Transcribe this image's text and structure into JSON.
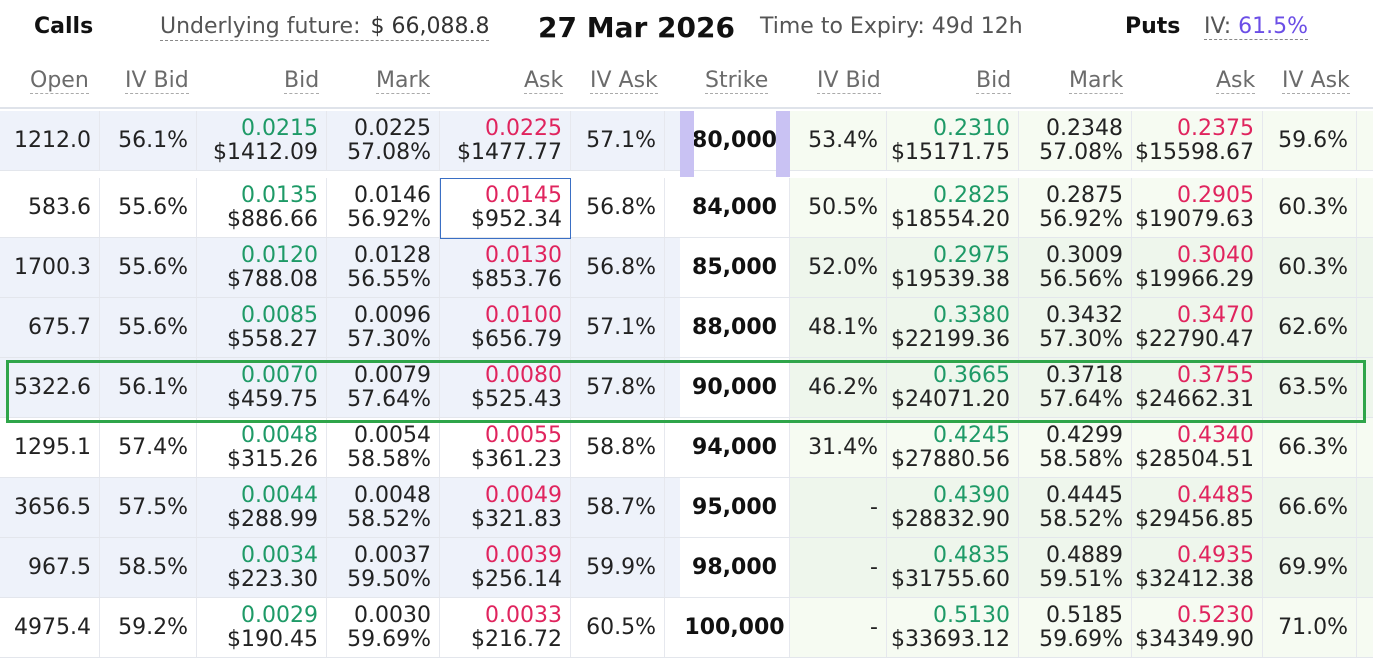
{
  "header": {
    "calls_title": "Calls",
    "underlying_label": "Underlying future:",
    "underlying_value": "$ 66,088.8",
    "expiry_date": "27 Mar 2026",
    "time_to_expiry": "Time to Expiry: 49d 12h",
    "puts_title": "Puts",
    "iv_label": "IV:",
    "iv_value": "61.5%"
  },
  "columns": {
    "calls": [
      "Open",
      "IV Bid",
      "Bid",
      "Mark",
      "Ask",
      "IV Ask"
    ],
    "strike": "Strike",
    "puts": [
      "IV Bid",
      "Bid",
      "Mark",
      "Ask",
      "IV Ask"
    ]
  },
  "colors": {
    "bid": "#1e9a67",
    "ask": "#e0245e",
    "iv_accent": "#6b4ee6",
    "atm_highlight": "#2fa54a"
  },
  "rows": [
    {
      "strike": "80,000",
      "c_open": "1212.0",
      "c_ivbid": "56.1%",
      "c_bid": "0.0215",
      "c_bid_usd": "$1412.09",
      "c_mark": "0.0225",
      "c_mark_iv": "57.08%",
      "c_ask": "0.0225",
      "c_ask_usd": "$1477.77",
      "c_ivask": "57.1%",
      "p_ivbid": "53.4%",
      "p_bid": "0.2310",
      "p_bid_usd": "$15171.75",
      "p_mark": "0.2348",
      "p_mark_iv": "57.08%",
      "p_ask": "0.2375",
      "p_ask_usd": "$15598.67",
      "p_ivask": "59.6%"
    },
    {
      "strike": "84,000",
      "c_open": "583.6",
      "c_ivbid": "55.6%",
      "c_bid": "0.0135",
      "c_bid_usd": "$886.66",
      "c_mark": "0.0146",
      "c_mark_iv": "56.92%",
      "c_ask": "0.0145",
      "c_ask_usd": "$952.34",
      "c_ivask": "56.8%",
      "p_ivbid": "50.5%",
      "p_bid": "0.2825",
      "p_bid_usd": "$18554.20",
      "p_mark": "0.2875",
      "p_mark_iv": "56.92%",
      "p_ask": "0.2905",
      "p_ask_usd": "$19079.63",
      "p_ivask": "60.3%"
    },
    {
      "strike": "85,000",
      "c_open": "1700.3",
      "c_ivbid": "55.6%",
      "c_bid": "0.0120",
      "c_bid_usd": "$788.08",
      "c_mark": "0.0128",
      "c_mark_iv": "56.55%",
      "c_ask": "0.0130",
      "c_ask_usd": "$853.76",
      "c_ivask": "56.8%",
      "p_ivbid": "52.0%",
      "p_bid": "0.2975",
      "p_bid_usd": "$19539.38",
      "p_mark": "0.3009",
      "p_mark_iv": "56.56%",
      "p_ask": "0.3040",
      "p_ask_usd": "$19966.29",
      "p_ivask": "60.3%"
    },
    {
      "strike": "88,000",
      "c_open": "675.7",
      "c_ivbid": "55.6%",
      "c_bid": "0.0085",
      "c_bid_usd": "$558.27",
      "c_mark": "0.0096",
      "c_mark_iv": "57.30%",
      "c_ask": "0.0100",
      "c_ask_usd": "$656.79",
      "c_ivask": "57.1%",
      "p_ivbid": "48.1%",
      "p_bid": "0.3380",
      "p_bid_usd": "$22199.36",
      "p_mark": "0.3432",
      "p_mark_iv": "57.30%",
      "p_ask": "0.3470",
      "p_ask_usd": "$22790.47",
      "p_ivask": "62.6%"
    },
    {
      "strike": "90,000",
      "c_open": "5322.6",
      "c_ivbid": "56.1%",
      "c_bid": "0.0070",
      "c_bid_usd": "$459.75",
      "c_mark": "0.0079",
      "c_mark_iv": "57.64%",
      "c_ask": "0.0080",
      "c_ask_usd": "$525.43",
      "c_ivask": "57.8%",
      "p_ivbid": "46.2%",
      "p_bid": "0.3665",
      "p_bid_usd": "$24071.20",
      "p_mark": "0.3718",
      "p_mark_iv": "57.64%",
      "p_ask": "0.3755",
      "p_ask_usd": "$24662.31",
      "p_ivask": "63.5%"
    },
    {
      "strike": "94,000",
      "c_open": "1295.1",
      "c_ivbid": "57.4%",
      "c_bid": "0.0048",
      "c_bid_usd": "$315.26",
      "c_mark": "0.0054",
      "c_mark_iv": "58.58%",
      "c_ask": "0.0055",
      "c_ask_usd": "$361.23",
      "c_ivask": "58.8%",
      "p_ivbid": "31.4%",
      "p_bid": "0.4245",
      "p_bid_usd": "$27880.56",
      "p_mark": "0.4299",
      "p_mark_iv": "58.58%",
      "p_ask": "0.4340",
      "p_ask_usd": "$28504.51",
      "p_ivask": "66.3%"
    },
    {
      "strike": "95,000",
      "c_open": "3656.5",
      "c_ivbid": "57.5%",
      "c_bid": "0.0044",
      "c_bid_usd": "$288.99",
      "c_mark": "0.0048",
      "c_mark_iv": "58.52%",
      "c_ask": "0.0049",
      "c_ask_usd": "$321.83",
      "c_ivask": "58.7%",
      "p_ivbid": "-",
      "p_bid": "0.4390",
      "p_bid_usd": "$28832.90",
      "p_mark": "0.4445",
      "p_mark_iv": "58.52%",
      "p_ask": "0.4485",
      "p_ask_usd": "$29456.85",
      "p_ivask": "66.6%"
    },
    {
      "strike": "98,000",
      "c_open": "967.5",
      "c_ivbid": "58.5%",
      "c_bid": "0.0034",
      "c_bid_usd": "$223.30",
      "c_mark": "0.0037",
      "c_mark_iv": "59.50%",
      "c_ask": "0.0039",
      "c_ask_usd": "$256.14",
      "c_ivask": "59.9%",
      "p_ivbid": "-",
      "p_bid": "0.4835",
      "p_bid_usd": "$31755.60",
      "p_mark": "0.4889",
      "p_mark_iv": "59.51%",
      "p_ask": "0.4935",
      "p_ask_usd": "$32412.38",
      "p_ivask": "69.9%"
    },
    {
      "strike": "100,000",
      "c_open": "4975.4",
      "c_ivbid": "59.2%",
      "c_bid": "0.0029",
      "c_bid_usd": "$190.45",
      "c_mark": "0.0030",
      "c_mark_iv": "59.69%",
      "c_ask": "0.0033",
      "c_ask_usd": "$216.72",
      "c_ivask": "60.5%",
      "p_ivbid": "-",
      "p_bid": "0.5130",
      "p_bid_usd": "$33693.12",
      "p_mark": "0.5185",
      "p_mark_iv": "59.69%",
      "p_ask": "0.5230",
      "p_ask_usd": "$34349.90",
      "p_ivask": "71.0%"
    }
  ]
}
